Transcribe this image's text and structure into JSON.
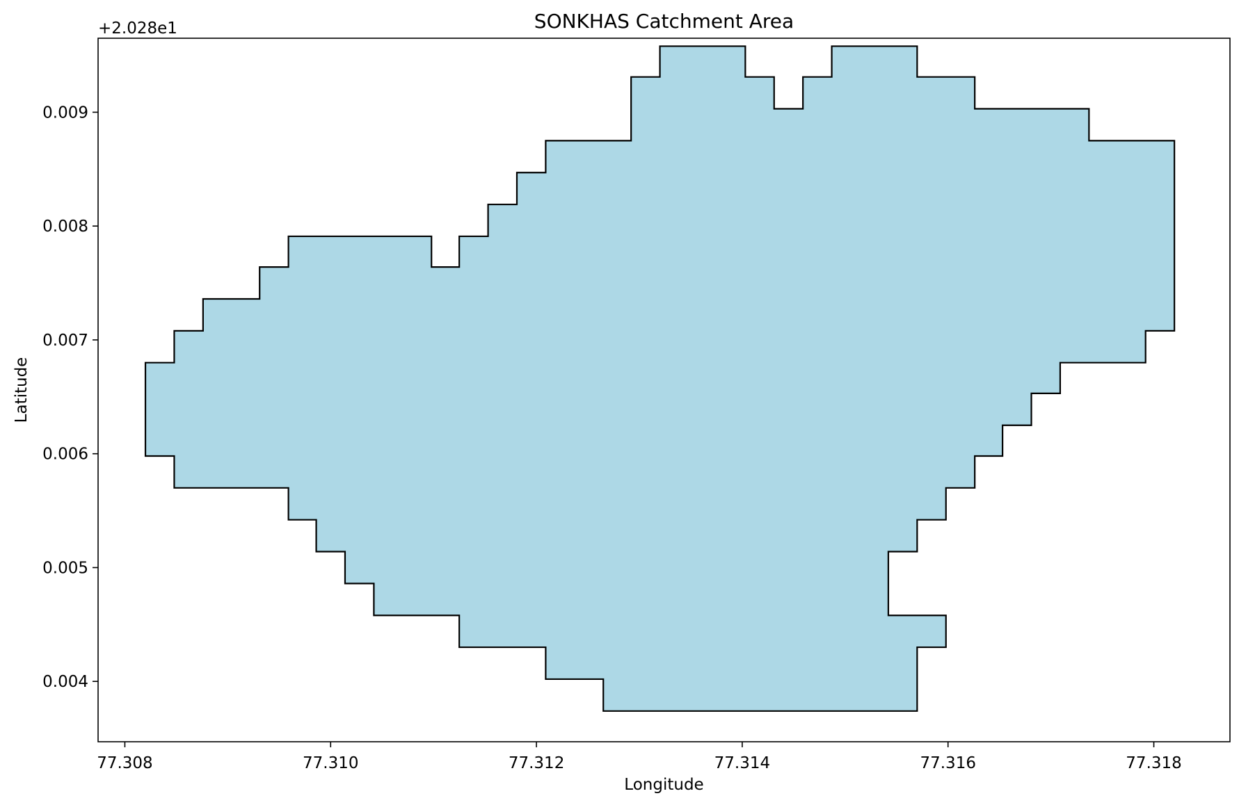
{
  "chart_data": {
    "type": "area",
    "title": "SONKHAS Catchment Area",
    "xlabel": "Longitude",
    "ylabel": "Latitude",
    "y_offset_label": "+2.028e1",
    "xlim": [
      77.30774,
      77.31874
    ],
    "ylim": [
      0.00347,
      0.00965
    ],
    "grid": false,
    "x_ticks": [
      77.308,
      77.31,
      77.312,
      77.314,
      77.316,
      77.318
    ],
    "x_tick_labels": [
      "77.308",
      "77.310",
      "77.312",
      "77.314",
      "77.316",
      "77.318"
    ],
    "y_ticks": [
      0.004,
      0.005,
      0.006,
      0.007,
      0.008,
      0.009
    ],
    "y_tick_labels": [
      "0.004",
      "0.005",
      "0.006",
      "0.007",
      "0.008",
      "0.009"
    ],
    "fill_color": "#add8e6",
    "edge_color": "#000000",
    "boundary": {
      "x": [
        77.31265,
        77.31265,
        77.31209,
        77.31209,
        77.31125,
        77.31125,
        77.31042,
        77.31042,
        77.31014,
        77.31014,
        77.30986,
        77.30986,
        77.30959,
        77.30959,
        77.30848,
        77.30848,
        77.3082,
        77.3082,
        77.30848,
        77.30848,
        77.30876,
        77.30876,
        77.30931,
        77.30931,
        77.30959,
        77.30959,
        77.31098,
        77.31098,
        77.31125,
        77.31125,
        77.31153,
        77.31153,
        77.31181,
        77.31181,
        77.31209,
        77.31209,
        77.31292,
        77.31292,
        77.3132,
        77.3132,
        77.31403,
        77.31403,
        77.31431,
        77.31431,
        77.31459,
        77.31459,
        77.31487,
        77.31487,
        77.3157,
        77.3157,
        77.31626,
        77.31626,
        77.31737,
        77.31737,
        77.3182,
        77.3182,
        77.31792,
        77.31792,
        77.31709,
        77.31709,
        77.31681,
        77.31681,
        77.31653,
        77.31653,
        77.31626,
        77.31626,
        77.31598,
        77.31598,
        77.3157,
        77.3157,
        77.31542,
        77.31542,
        77.31598,
        77.31598,
        77.3157,
        77.3157,
        77.31265
      ],
      "y": [
        0.00374,
        0.00402,
        0.00402,
        0.0043,
        0.0043,
        0.00458,
        0.00458,
        0.00486,
        0.00486,
        0.00514,
        0.00514,
        0.00542,
        0.00542,
        0.0057,
        0.0057,
        0.00598,
        0.00598,
        0.0068,
        0.0068,
        0.00708,
        0.00708,
        0.00736,
        0.00736,
        0.00764,
        0.00764,
        0.00791,
        0.00791,
        0.00764,
        0.00764,
        0.00791,
        0.00791,
        0.00819,
        0.00819,
        0.00847,
        0.00847,
        0.00875,
        0.00875,
        0.00931,
        0.00931,
        0.00958,
        0.00958,
        0.00931,
        0.00931,
        0.00903,
        0.00903,
        0.00931,
        0.00931,
        0.00958,
        0.00958,
        0.00931,
        0.00931,
        0.00903,
        0.00903,
        0.00875,
        0.00875,
        0.00708,
        0.00708,
        0.0068,
        0.0068,
        0.00653,
        0.00653,
        0.00625,
        0.00625,
        0.00598,
        0.00598,
        0.0057,
        0.0057,
        0.00542,
        0.00542,
        0.00514,
        0.00514,
        0.00458,
        0.00458,
        0.0043,
        0.0043,
        0.00374,
        0.00374
      ]
    }
  }
}
